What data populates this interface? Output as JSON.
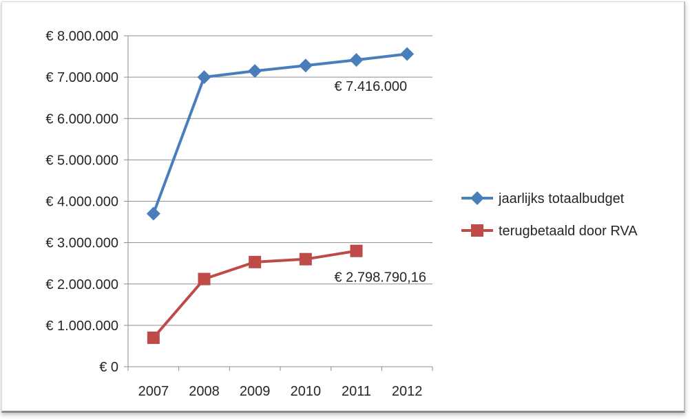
{
  "chart_data": {
    "type": "line",
    "categories": [
      "2007",
      "2008",
      "2009",
      "2010",
      "2011",
      "2012"
    ],
    "ylim": [
      0,
      8000000
    ],
    "yticks": [
      {
        "value": 0,
        "label": "€ 0"
      },
      {
        "value": 1000000,
        "label": "€ 1.000.000"
      },
      {
        "value": 2000000,
        "label": "€ 2.000.000"
      },
      {
        "value": 3000000,
        "label": "€ 3.000.000"
      },
      {
        "value": 4000000,
        "label": "€ 4.000.000"
      },
      {
        "value": 5000000,
        "label": "€ 5.000.000"
      },
      {
        "value": 6000000,
        "label": "€ 6.000.000"
      },
      {
        "value": 7000000,
        "label": "€ 7.000.000"
      },
      {
        "value": 8000000,
        "label": "€ 8.000.000"
      }
    ],
    "grid": true,
    "legend_position": "right",
    "series": [
      {
        "name": "jaarlijks totaalbudget",
        "color": "#4a7ebb",
        "marker": "diamond",
        "values": [
          3700000,
          7000000,
          7150000,
          7280000,
          7416000,
          7560000
        ],
        "annotations": [
          {
            "index": 4,
            "text": "€ 7.416.000"
          }
        ]
      },
      {
        "name": "terugbetaald door RVA",
        "color": "#be4b48",
        "marker": "square",
        "values": [
          700000,
          2120000,
          2530000,
          2600000,
          2798790.16,
          null
        ],
        "annotations": [
          {
            "index": 4,
            "text": "€ 2.798.790,16"
          }
        ]
      }
    ]
  }
}
